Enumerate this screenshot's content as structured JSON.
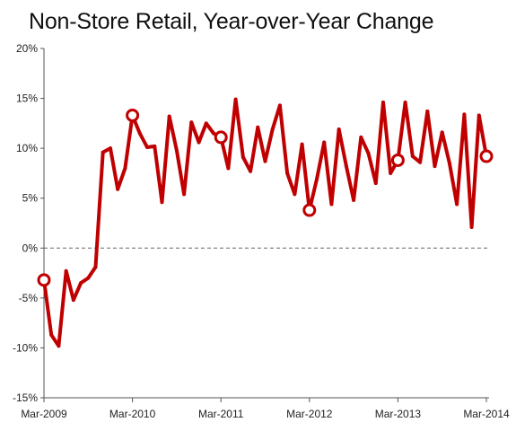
{
  "chart_data": {
    "type": "line",
    "title": "Non-Store Retail, Year-over-Year Change",
    "xlabel": "",
    "ylabel": "",
    "ylim": [
      -15,
      20
    ],
    "yticks": [
      20,
      15,
      10,
      5,
      0,
      -5,
      -10,
      -15
    ],
    "ytick_labels": [
      "20%",
      "15%",
      "10%",
      "5%",
      "0%",
      "-5%",
      "-10%",
      "-15%"
    ],
    "xtick_labels": [
      "Mar-2009",
      "Mar-2010",
      "Mar-2011",
      "Mar-2012",
      "Mar-2013",
      "Mar-2014"
    ],
    "xtick_indices": [
      0,
      12,
      24,
      36,
      48,
      60
    ],
    "zero_line": "dashed",
    "grid": false,
    "legend": "none",
    "colors": {
      "line": "#c00000",
      "marker_fill": "#ffffff",
      "axis": "#555555",
      "zero_line": "#666666"
    },
    "marker_indices": [
      0,
      12,
      24,
      36,
      48,
      60
    ],
    "series": [
      {
        "name": "",
        "x": [
          "Mar-2009",
          "Apr-2009",
          "May-2009",
          "Jun-2009",
          "Jul-2009",
          "Aug-2009",
          "Sep-2009",
          "Oct-2009",
          "Nov-2009",
          "Dec-2009",
          "Jan-2010",
          "Feb-2010",
          "Mar-2010",
          "Apr-2010",
          "May-2010",
          "Jun-2010",
          "Jul-2010",
          "Aug-2010",
          "Sep-2010",
          "Oct-2010",
          "Nov-2010",
          "Dec-2010",
          "Jan-2011",
          "Feb-2011",
          "Mar-2011",
          "Apr-2011",
          "May-2011",
          "Jun-2011",
          "Jul-2011",
          "Aug-2011",
          "Sep-2011",
          "Oct-2011",
          "Nov-2011",
          "Dec-2011",
          "Jan-2012",
          "Feb-2012",
          "Mar-2012",
          "Apr-2012",
          "May-2012",
          "Jun-2012",
          "Jul-2012",
          "Aug-2012",
          "Sep-2012",
          "Oct-2012",
          "Nov-2012",
          "Dec-2012",
          "Jan-2013",
          "Feb-2013",
          "Mar-2013",
          "Apr-2013",
          "May-2013",
          "Jun-2013",
          "Jul-2013",
          "Aug-2013",
          "Sep-2013",
          "Oct-2013",
          "Nov-2013",
          "Dec-2013",
          "Jan-2014",
          "Feb-2014",
          "Mar-2014"
        ],
        "values": [
          -3.2,
          -8.7,
          -9.8,
          -2.3,
          -5.2,
          -3.5,
          -3.0,
          -1.9,
          9.6,
          10.0,
          5.9,
          8.0,
          13.3,
          11.5,
          10.1,
          10.2,
          4.6,
          13.2,
          9.8,
          5.4,
          12.6,
          10.6,
          12.5,
          11.5,
          11.1,
          8.0,
          14.9,
          9.1,
          7.7,
          12.1,
          8.7,
          11.9,
          14.3,
          7.5,
          5.4,
          10.4,
          3.8,
          6.9,
          10.6,
          4.4,
          11.9,
          8.2,
          4.8,
          11.1,
          9.5,
          6.5,
          14.6,
          7.5,
          8.8,
          14.6,
          9.2,
          8.6,
          13.7,
          8.2,
          11.6,
          8.5,
          4.4,
          13.4,
          2.1,
          13.3,
          9.2
        ]
      }
    ]
  }
}
